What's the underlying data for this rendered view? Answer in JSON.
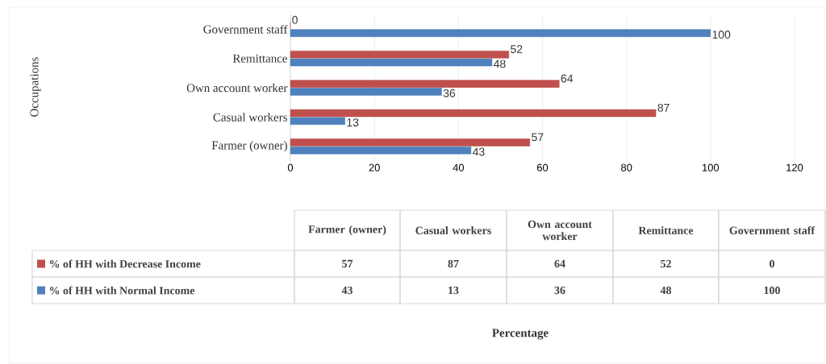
{
  "chart_data": [
    {
      "type": "bar",
      "orientation": "horizontal",
      "categories": [
        "Government staff",
        "Remittance",
        "Own account worker",
        "Casual workers",
        "Farmer (owner)"
      ],
      "series": [
        {
          "name": "% of HH with Decrease Income",
          "color": "#c0504d",
          "values": [
            0,
            52,
            64,
            87,
            57
          ]
        },
        {
          "name": "% of HH with Normal Income",
          "color": "#4f81bd",
          "values": [
            100,
            48,
            36,
            13,
            43
          ]
        }
      ],
      "xlim": [
        0,
        120
      ],
      "xticks": [
        0,
        20,
        40,
        60,
        80,
        100,
        120
      ],
      "annotations": [
        "Occupations",
        "Percentage"
      ],
      "grid": "x",
      "data_labels": true,
      "legend": "bottom"
    },
    {
      "type": "other",
      "categories": [
        "Farmer (owner)",
        "Casual workers",
        "Own account worker",
        "Remittance",
        "Government staff"
      ],
      "series": [
        {
          "values": [
            57,
            87,
            64,
            52,
            0
          ]
        },
        {
          "values": [
            43,
            13,
            36,
            48,
            100
          ]
        }
      ],
      "data_labels": true
    }
  ]
}
